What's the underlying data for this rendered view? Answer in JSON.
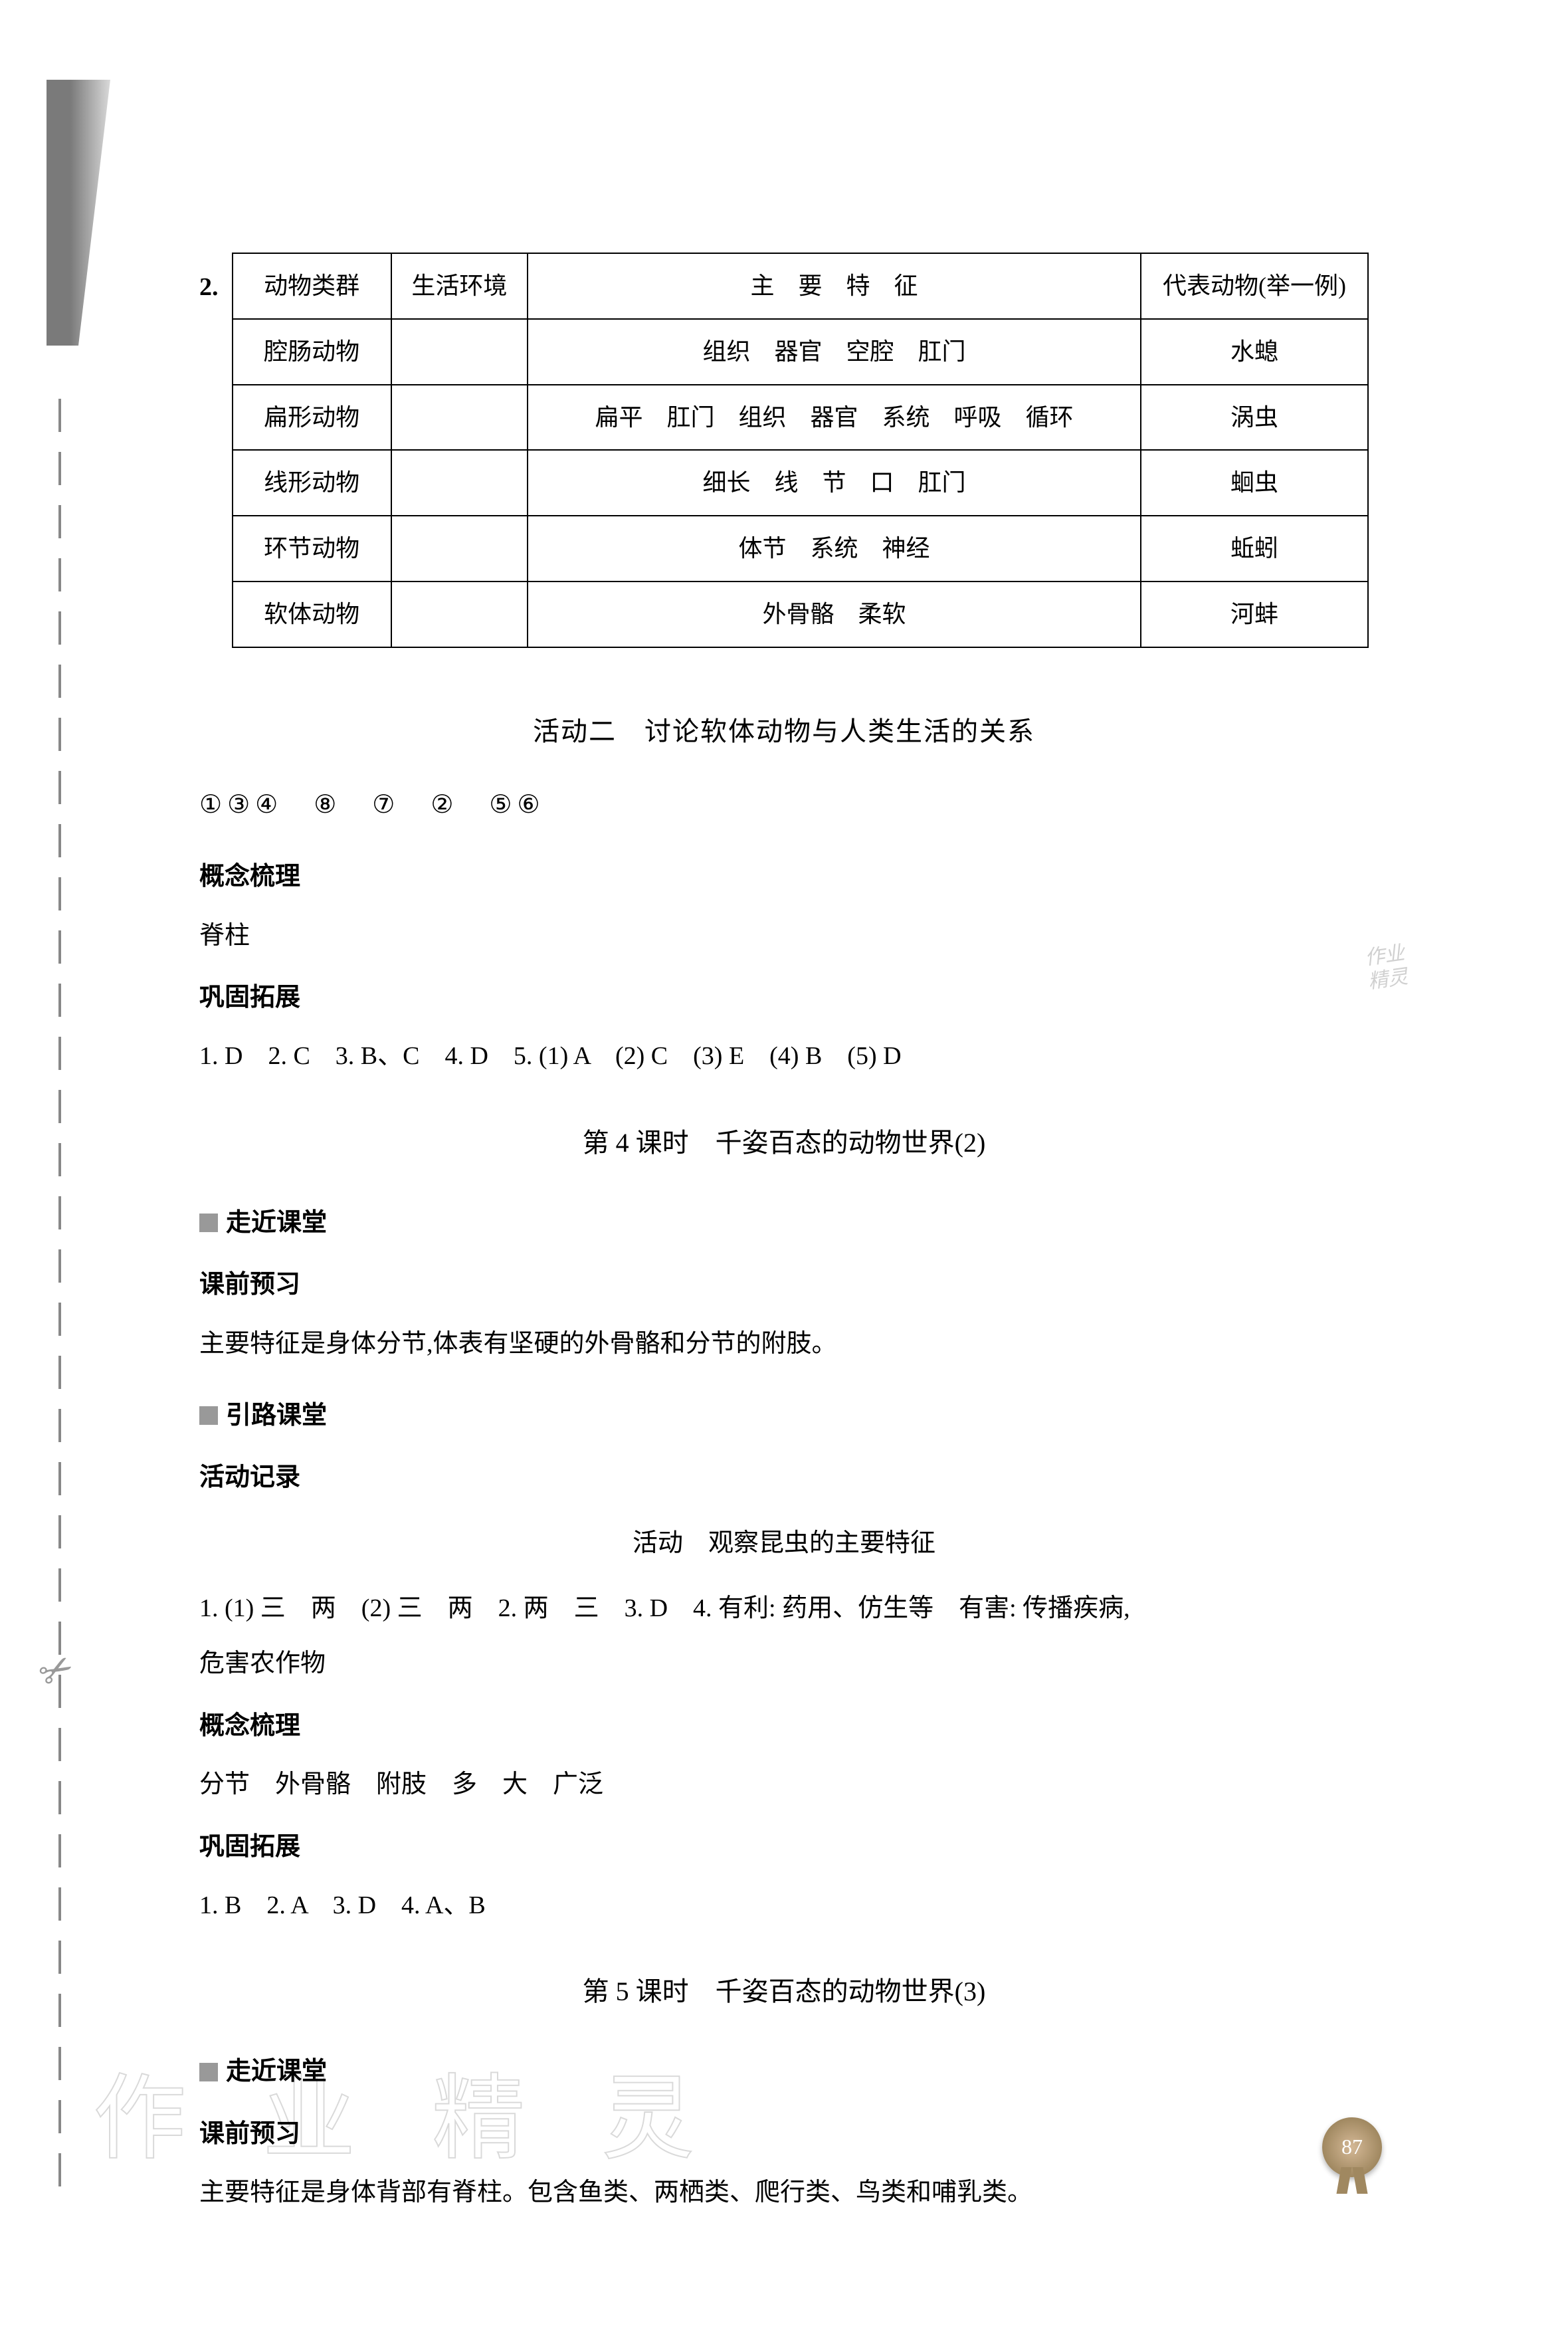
{
  "question2": "2.",
  "table": {
    "header": [
      "动物类群",
      "生活环境",
      "主　要　特　征",
      "代表动物(举一例)"
    ],
    "rows": [
      [
        "腔肠动物",
        "",
        "组织　器官　空腔　肛门",
        "水螅"
      ],
      [
        "扁形动物",
        "",
        "扁平　肛门　组织　器官　系统　呼吸　循环",
        "涡虫"
      ],
      [
        "线形动物",
        "",
        "细长　线　节　口　肛门",
        "蛔虫"
      ],
      [
        "环节动物",
        "",
        "体节　系统　神经",
        "蚯蚓"
      ],
      [
        "软体动物",
        "",
        "外骨骼　柔软",
        "河蚌"
      ]
    ],
    "colWidths": [
      "14%",
      "12%",
      "54%",
      "20%"
    ]
  },
  "activity2_title": "活动二　讨论软体动物与人类生活的关系",
  "circled_line": "①③④　⑧　⑦　②　⑤⑥",
  "concept_heading": "概念梳理",
  "concept_text": "脊柱",
  "consolidate_heading": "巩固拓展",
  "consolidate_answers": "1. D　2. C　3. B、C　4. D　5. (1) A　(2) C　(3) E　(4) B　(5) D",
  "lesson4_title": "第 4 课时　千姿百态的动物世界(2)",
  "section_near": "走近课堂",
  "preview_heading": "课前预习",
  "lesson4_preview_text": "主要特征是身体分节,体表有坚硬的外骨骼和分节的附肢。",
  "section_guide": "引路课堂",
  "activity_record": "活动记录",
  "lesson4_activity_title": "活动　观察昆虫的主要特征",
  "lesson4_activity_line1": "1. (1) 三　两　(2) 三　两　2. 两　三　3. D　4. 有利: 药用、仿生等　有害: 传播疾病,",
  "lesson4_activity_line2": "危害农作物",
  "lesson4_concept_text": "分节　外骨骼　附肢　多　大　广泛",
  "lesson4_consolidate": "1. B　2. A　3. D　4. A、B",
  "lesson5_title": "第 5 课时　千姿百态的动物世界(3)",
  "lesson5_preview_text": "主要特征是身体背部有脊柱。包含鱼类、两栖类、爬行类、鸟类和哺乳类。",
  "watermark_text": "作 业 精 灵",
  "stamp_text1": "作业",
  "stamp_text2": "精灵",
  "page_number": "87"
}
